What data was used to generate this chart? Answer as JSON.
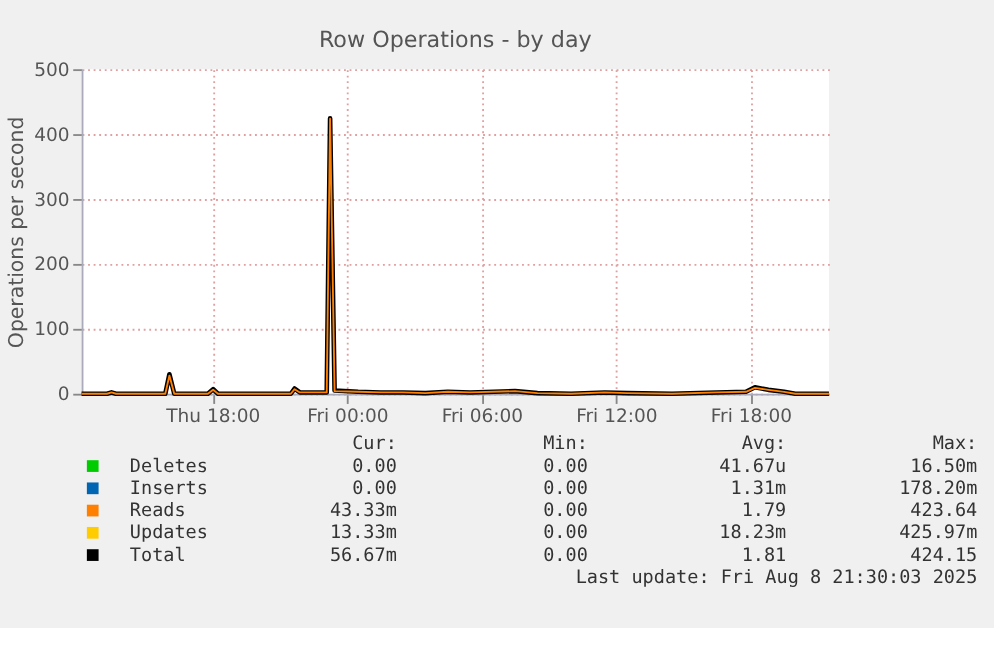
{
  "chart_data": {
    "type": "line",
    "title": "Row Operations - by day",
    "ylabel": "Operations per second",
    "x": [
      "2025-08-07T12:10",
      "2025-08-07T13:18",
      "2025-08-07T13:30",
      "2025-08-07T13:42",
      "2025-08-07T15:54",
      "2025-08-07T16:05",
      "2025-08-07T16:18",
      "2025-08-07T17:48",
      "2025-08-07T18:02",
      "2025-08-07T18:15",
      "2025-08-07T21:30",
      "2025-08-07T21:40",
      "2025-08-07T21:54",
      "2025-08-07T23:06",
      "2025-08-07T23:15",
      "2025-08-07T23:27",
      "2025-08-08T00:30",
      "2025-08-08T01:30",
      "2025-08-08T02:30",
      "2025-08-08T03:30",
      "2025-08-08T04:30",
      "2025-08-08T05:30",
      "2025-08-08T07:30",
      "2025-08-08T08:30",
      "2025-08-08T10:00",
      "2025-08-08T11:30",
      "2025-08-08T12:30",
      "2025-08-08T14:30",
      "2025-08-08T16:30",
      "2025-08-08T17:48",
      "2025-08-08T18:12",
      "2025-08-08T18:48",
      "2025-08-08T19:30",
      "2025-08-08T20:00",
      "2025-08-08T21:30"
    ],
    "series": [
      {
        "name": "Deletes",
        "color": "#00cc00",
        "values": [
          null,
          null,
          null,
          null,
          null,
          null,
          null,
          null,
          null,
          null,
          null,
          null,
          null,
          null,
          null,
          null,
          null,
          null,
          null,
          null,
          null,
          null,
          null,
          null,
          null,
          null,
          null,
          null,
          null,
          null,
          null,
          null,
          null,
          null,
          null
        ]
      },
      {
        "name": "Inserts",
        "color": "#0066b3",
        "values": [
          null,
          null,
          null,
          null,
          null,
          null,
          null,
          null,
          null,
          null,
          null,
          null,
          null,
          null,
          null,
          null,
          null,
          null,
          null,
          null,
          null,
          null,
          null,
          null,
          null,
          null,
          null,
          null,
          null,
          null,
          null,
          null,
          null,
          null,
          null
        ]
      },
      {
        "name": "Reads",
        "color": "#ff8000",
        "values": [
          0,
          0,
          2,
          0,
          0,
          28,
          0,
          0,
          6,
          0,
          0,
          7,
          2,
          2,
          423.64,
          4,
          3,
          2,
          2,
          1,
          3,
          2,
          4,
          1,
          0,
          2,
          1,
          0,
          2,
          3,
          9,
          6,
          3,
          0,
          0
        ]
      },
      {
        "name": "Updates",
        "color": "#ffcc00",
        "values": [
          null,
          null,
          null,
          null,
          null,
          null,
          null,
          null,
          null,
          null,
          null,
          null,
          null,
          null,
          null,
          null,
          null,
          null,
          null,
          null,
          null,
          null,
          null,
          null,
          null,
          null,
          null,
          null,
          null,
          null,
          null,
          null,
          null,
          null,
          null
        ]
      },
      {
        "name": "Total",
        "color": "#000000",
        "values": [
          0,
          0,
          2,
          0,
          0,
          30,
          0,
          0,
          7,
          0,
          0,
          8,
          2,
          2,
          424.15,
          5,
          3,
          2,
          2,
          1,
          3,
          2,
          4,
          1,
          0,
          2,
          1,
          0,
          2,
          3,
          10,
          6,
          3,
          0,
          0
        ]
      }
    ],
    "xlim": [
      "2025-08-07T12:10",
      "2025-08-08T21:30"
    ],
    "xticks": [
      {
        "value": "2025-08-07T18:00",
        "label": "Thu 18:00"
      },
      {
        "value": "2025-08-08T00:00",
        "label": "Fri 00:00"
      },
      {
        "value": "2025-08-08T06:00",
        "label": "Fri 06:00"
      },
      {
        "value": "2025-08-08T12:00",
        "label": "Fri 12:00"
      },
      {
        "value": "2025-08-08T18:00",
        "label": "Fri 18:00"
      }
    ],
    "ylim": [
      0,
      500
    ],
    "yticks": [
      0,
      100,
      200,
      300,
      400,
      500
    ],
    "grid": true,
    "legend": "bottom",
    "line_style": "solid",
    "marker": "none",
    "annotations": [
      "Cur:",
      "Min:",
      "Avg:",
      "Max:",
      "0.00",
      "0.00",
      "41.67u",
      "16.50m",
      "0.00",
      "0.00",
      "1.31m",
      "178.20m",
      "43.33m",
      "0.00",
      "1.79",
      "423.64",
      "13.33m",
      "0.00",
      "18.23m",
      "425.97m",
      "56.67m",
      "0.00",
      "1.81",
      "424.15",
      "Last update: Fri Aug  8 21:30:03 2025"
    ]
  }
}
